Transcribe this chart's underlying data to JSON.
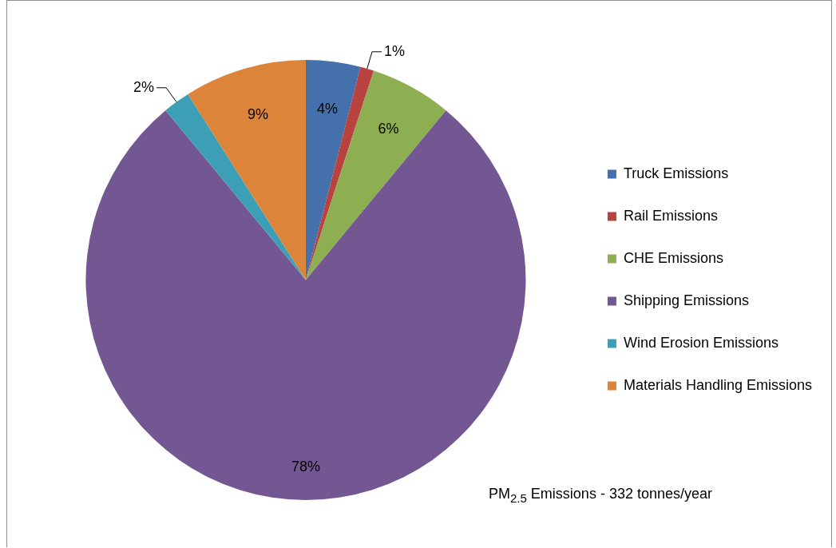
{
  "chart_data": {
    "type": "pie",
    "categories": [
      "Truck Emissions",
      "Rail Emissions",
      "CHE Emissions",
      "Shipping Emissions",
      "Wind Erosion Emissions",
      "Materials Handling Emissions"
    ],
    "values": [
      4,
      1,
      6,
      78,
      2,
      9
    ],
    "value_labels": [
      "4%",
      "1%",
      "6%",
      "78%",
      "2%",
      "9%"
    ],
    "colors": [
      "#4470ab",
      "#b8423f",
      "#8eae52",
      "#725793",
      "#3c9fb5",
      "#dd843b"
    ],
    "legend": "right",
    "annotations": [
      "PM$_{2.5}$ Emissions - 332 tonnes/year"
    ]
  }
}
